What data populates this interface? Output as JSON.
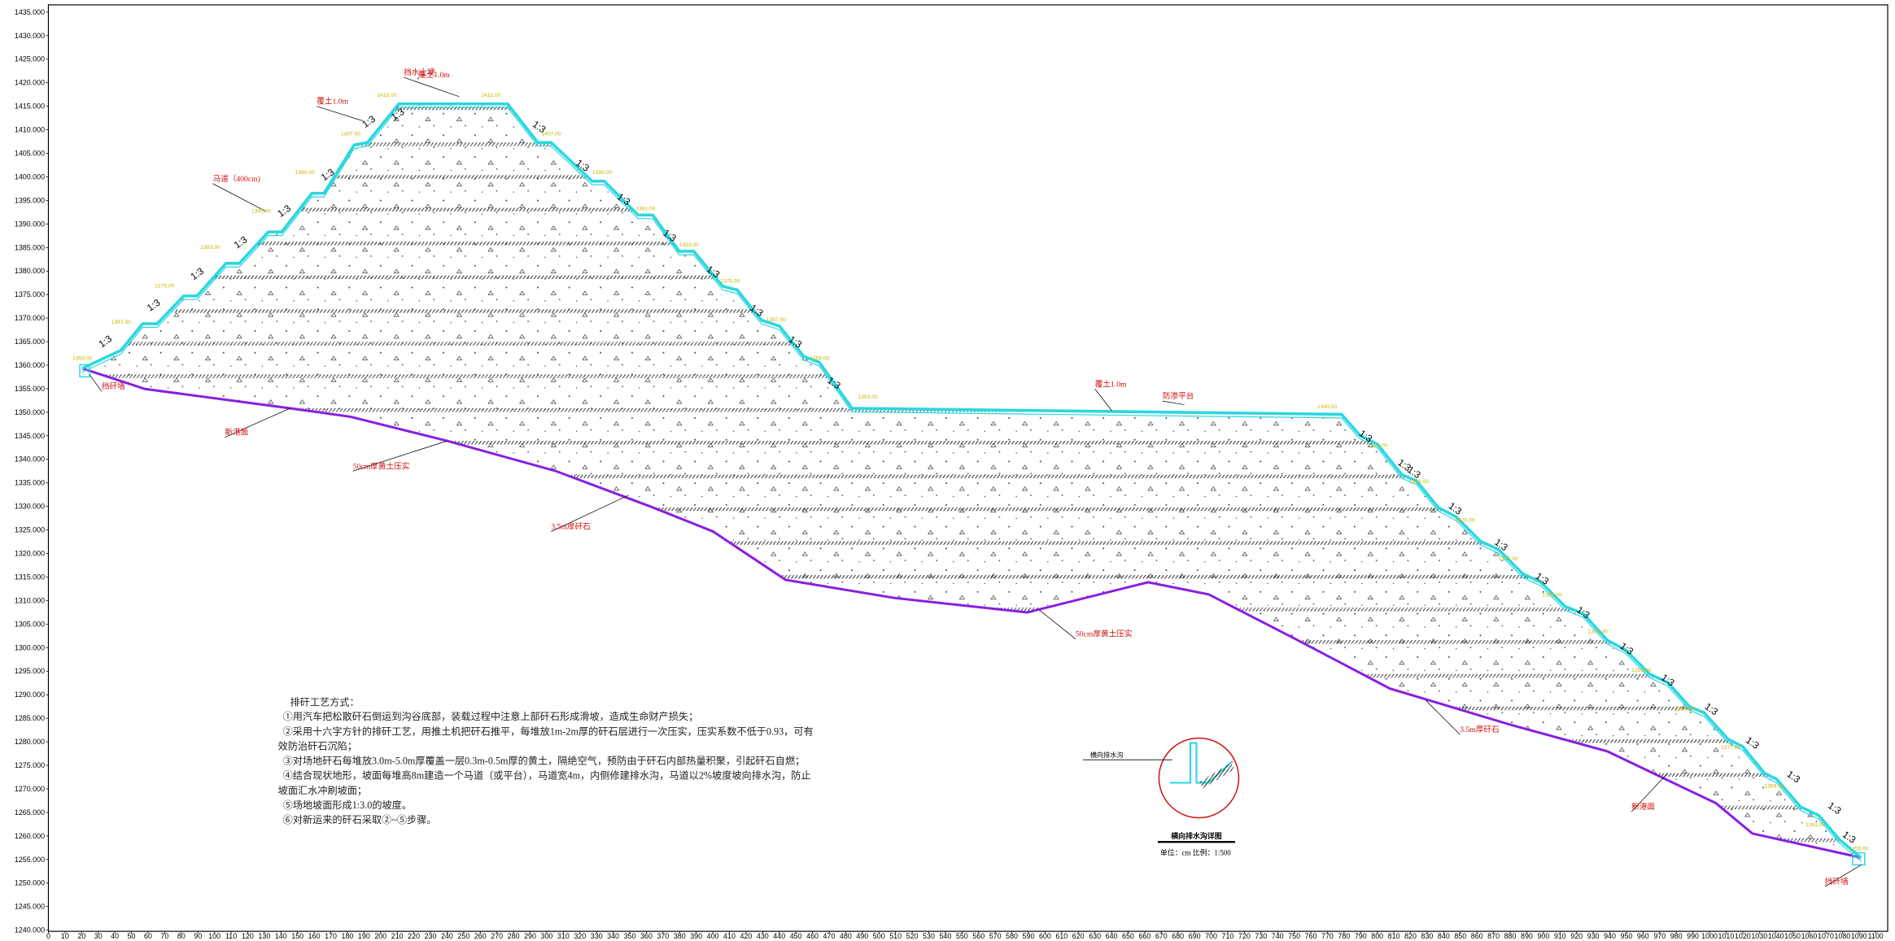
{
  "y_axis_labels": [
    "1240.000",
    "1245.000",
    "1250.000",
    "1255.000",
    "1260.000",
    "1265.000",
    "1270.000",
    "1275.000",
    "1280.000",
    "1285.000",
    "1290.000",
    "1295.000",
    "1300.000",
    "1305.000",
    "1310.000",
    "1315.000",
    "1320.000",
    "1325.000",
    "1330.000",
    "1335.000",
    "1340.000",
    "1345.000",
    "1350.000",
    "1355.000",
    "1360.000",
    "1365.000",
    "1370.000",
    "1375.000",
    "1380.000",
    "1385.000",
    "1390.000",
    "1395.000",
    "1400.000",
    "1405.000",
    "1410.000",
    "1415.000",
    "1420.000",
    "1425.000",
    "1430.000",
    "1435.000"
  ],
  "x_axis_labels": [
    "0",
    "10",
    "20",
    "30",
    "40",
    "50",
    "60",
    "70",
    "80",
    "90",
    "100",
    "110",
    "120",
    "130",
    "140",
    "150",
    "160",
    "170",
    "180",
    "190",
    "200",
    "210",
    "220",
    "230",
    "240",
    "250",
    "260",
    "270",
    "280",
    "290",
    "300",
    "310",
    "320",
    "330",
    "340",
    "350",
    "360",
    "370",
    "380",
    "390",
    "400",
    "410",
    "420",
    "430",
    "440",
    "450",
    "460",
    "470",
    "480",
    "490",
    "500",
    "510",
    "520",
    "530",
    "540",
    "550",
    "560",
    "570",
    "580",
    "590",
    "600",
    "610",
    "620",
    "630",
    "640",
    "650",
    "660",
    "670",
    "680",
    "690",
    "700",
    "710",
    "720",
    "730",
    "740",
    "750",
    "760",
    "770",
    "780",
    "790",
    "800",
    "810",
    "820",
    "830",
    "840",
    "850",
    "860",
    "870",
    "880",
    "890",
    "900",
    "910",
    "920",
    "930",
    "940",
    "950",
    "960",
    "970",
    "980",
    "990",
    "1000",
    "1010",
    "1020",
    "1030",
    "1040",
    "1050",
    "1060",
    "1070",
    "1080",
    "1090",
    "1100"
  ],
  "annotations": [
    "挡水土埂",
    "覆土1.0m",
    "覆土1.0m",
    "马道（400cm)",
    "挡矸墙",
    "新港面",
    "50cm厚黄土压实",
    "3.5m厚矸石",
    "覆土1.0m",
    "防渗平台",
    "50cm厚黄土压实",
    "3.5m厚矸石",
    "新港面",
    "挡矸墙"
  ],
  "slope_labels": [
    "1:3",
    "1:3",
    "1:3",
    "1:3",
    "1:3",
    "1:3",
    "1:3",
    "1:3",
    "1:3",
    "1:3",
    "1:3",
    "1:3",
    "1:3",
    "1:3",
    "1:3",
    "1:3",
    "1:3",
    "1:3",
    "1:3",
    "1:3",
    "1:3",
    "1:3",
    "1:3",
    "1:3",
    "1:3",
    "1:3",
    "1:3",
    "1:3",
    "1:3",
    "1:3"
  ],
  "elevation_labels": [
    "1415.00",
    "1415.00",
    "1407.00",
    "1407.00",
    "1399.00",
    "1399.00",
    "1391.00",
    "1391.00",
    "1383.00",
    "1383.00",
    "1375.00",
    "1375.00",
    "1367.00",
    "1367.00",
    "1359.00",
    "1359.00",
    "1353.00",
    "1349.00",
    "1341.00",
    "1333.00",
    "1325.00",
    "1317.00",
    "1309.00",
    "1301.00",
    "1293.00",
    "1285.00",
    "1277.00",
    "1269.00",
    "1261.00",
    "1255.00"
  ],
  "notes": {
    "title": "排矸工艺方式：",
    "lines": [
      "①用汽车把松散矸石倒运到沟谷底部，装载过程中注意上部矸石形成滑坡，造成生命财产损失；",
      "②采用十六字方针的排矸工艺，用推土机把矸石推平，每堆放1m-2m厚的矸石层进行一次压实，压实系数不低于0.93，可有",
      "效防治矸石沉陷；",
      "③对场地矸石每堆放3.0m-5.0m厚覆盖一层0.3m-0.5m厚的黄土，隔绝空气，预防由于矸石内部热量积聚，引起矸石自燃；",
      "④结合现状地形，坡面每堆高8m建造一个马道（或平台），马道宽4m，内侧修建排水沟，马道以2%坡度坡向排水沟，防止",
      "坡面汇水冲刷坡面；",
      "⑤场地坡面形成1:3.0的坡度。",
      "⑥对新运来的矸石采取②~⑤步骤。"
    ]
  },
  "detail": {
    "label": "横向排水沟",
    "caption": "横向排水沟详图",
    "scale": "单位：cm    比例：1:500"
  }
}
